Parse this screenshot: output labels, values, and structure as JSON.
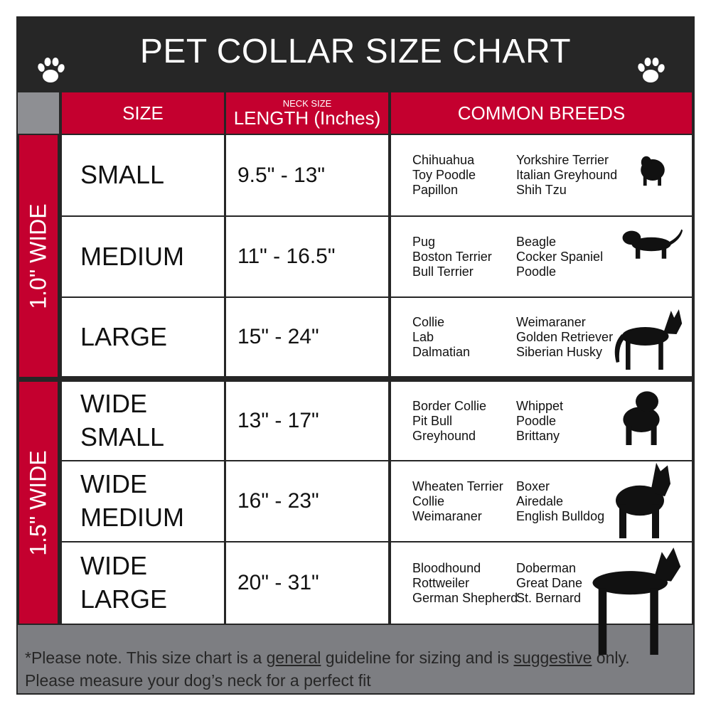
{
  "title": "PET COLLAR SIZE CHART",
  "icons": {
    "left": "paw-print-icon",
    "right": "paw-print-icon"
  },
  "colors": {
    "accent_red": "#c4002f",
    "dark": "#262626",
    "gray": "#7d7e82"
  },
  "headers": {
    "size": "SIZE",
    "length_small": "NECK SIZE",
    "length": "LENGTH (Inches)",
    "breeds": "COMMON BREEDS"
  },
  "groups": [
    {
      "label": "1.0\" WIDE"
    },
    {
      "label": "1.5\" WIDE"
    }
  ],
  "rows": [
    {
      "size_line1": "SMALL",
      "size_line2": "",
      "length": "9.5\" - 13\"",
      "breeds_a": [
        "Chihuahua",
        "Toy Poodle",
        "Papillon"
      ],
      "breeds_b": [
        "Yorkshire Terrier",
        "Italian Greyhound",
        "Shih Tzu"
      ],
      "icon": "small-dog-silhouette-icon"
    },
    {
      "size_line1": "MEDIUM",
      "size_line2": "",
      "length": "11\" - 16.5\"",
      "breeds_a": [
        "Pug",
        "Boston Terrier",
        "Bull Terrier"
      ],
      "breeds_b": [
        "Beagle",
        "Cocker Spaniel",
        "Poodle"
      ],
      "icon": "medium-dog-silhouette-icon"
    },
    {
      "size_line1": "LARGE",
      "size_line2": "",
      "length": "15\" - 24\"",
      "breeds_a": [
        "Collie",
        "Lab",
        "Dalmatian"
      ],
      "breeds_b": [
        "Weimaraner",
        "Golden Retriever",
        "Siberian Husky"
      ],
      "icon": "large-dog-silhouette-icon"
    },
    {
      "size_line1": "WIDE",
      "size_line2": "SMALL",
      "length": "13\" - 17\"",
      "breeds_a": [
        "Border Collie",
        "Pit Bull",
        "Greyhound"
      ],
      "breeds_b": [
        "Whippet",
        "Poodle",
        "Brittany"
      ],
      "icon": "bulldog-silhouette-icon"
    },
    {
      "size_line1": "WIDE",
      "size_line2": "MEDIUM",
      "length": "16\" - 23\"",
      "breeds_a": [
        "Wheaten Terrier",
        "Collie",
        "Weimaraner"
      ],
      "breeds_b": [
        "Boxer",
        "Airedale",
        "English Bulldog"
      ],
      "icon": "pitbull-silhouette-icon"
    },
    {
      "size_line1": "WIDE",
      "size_line2": "LARGE",
      "length": "20\" - 31\"",
      "breeds_a": [
        "Bloodhound",
        "Rottweiler",
        "German Shepherd"
      ],
      "breeds_b": [
        "Doberman",
        "Great Dane",
        "St. Bernard"
      ],
      "icon": "doberman-silhouette-icon"
    }
  ],
  "footer": {
    "part1": "*Please note. This size chart is a ",
    "general": "general",
    "part2": " guideline for sizing and is ",
    "suggestive": "suggestive",
    "part3": " only.",
    "line2": "Please measure your dog’s neck for a perfect fit"
  }
}
